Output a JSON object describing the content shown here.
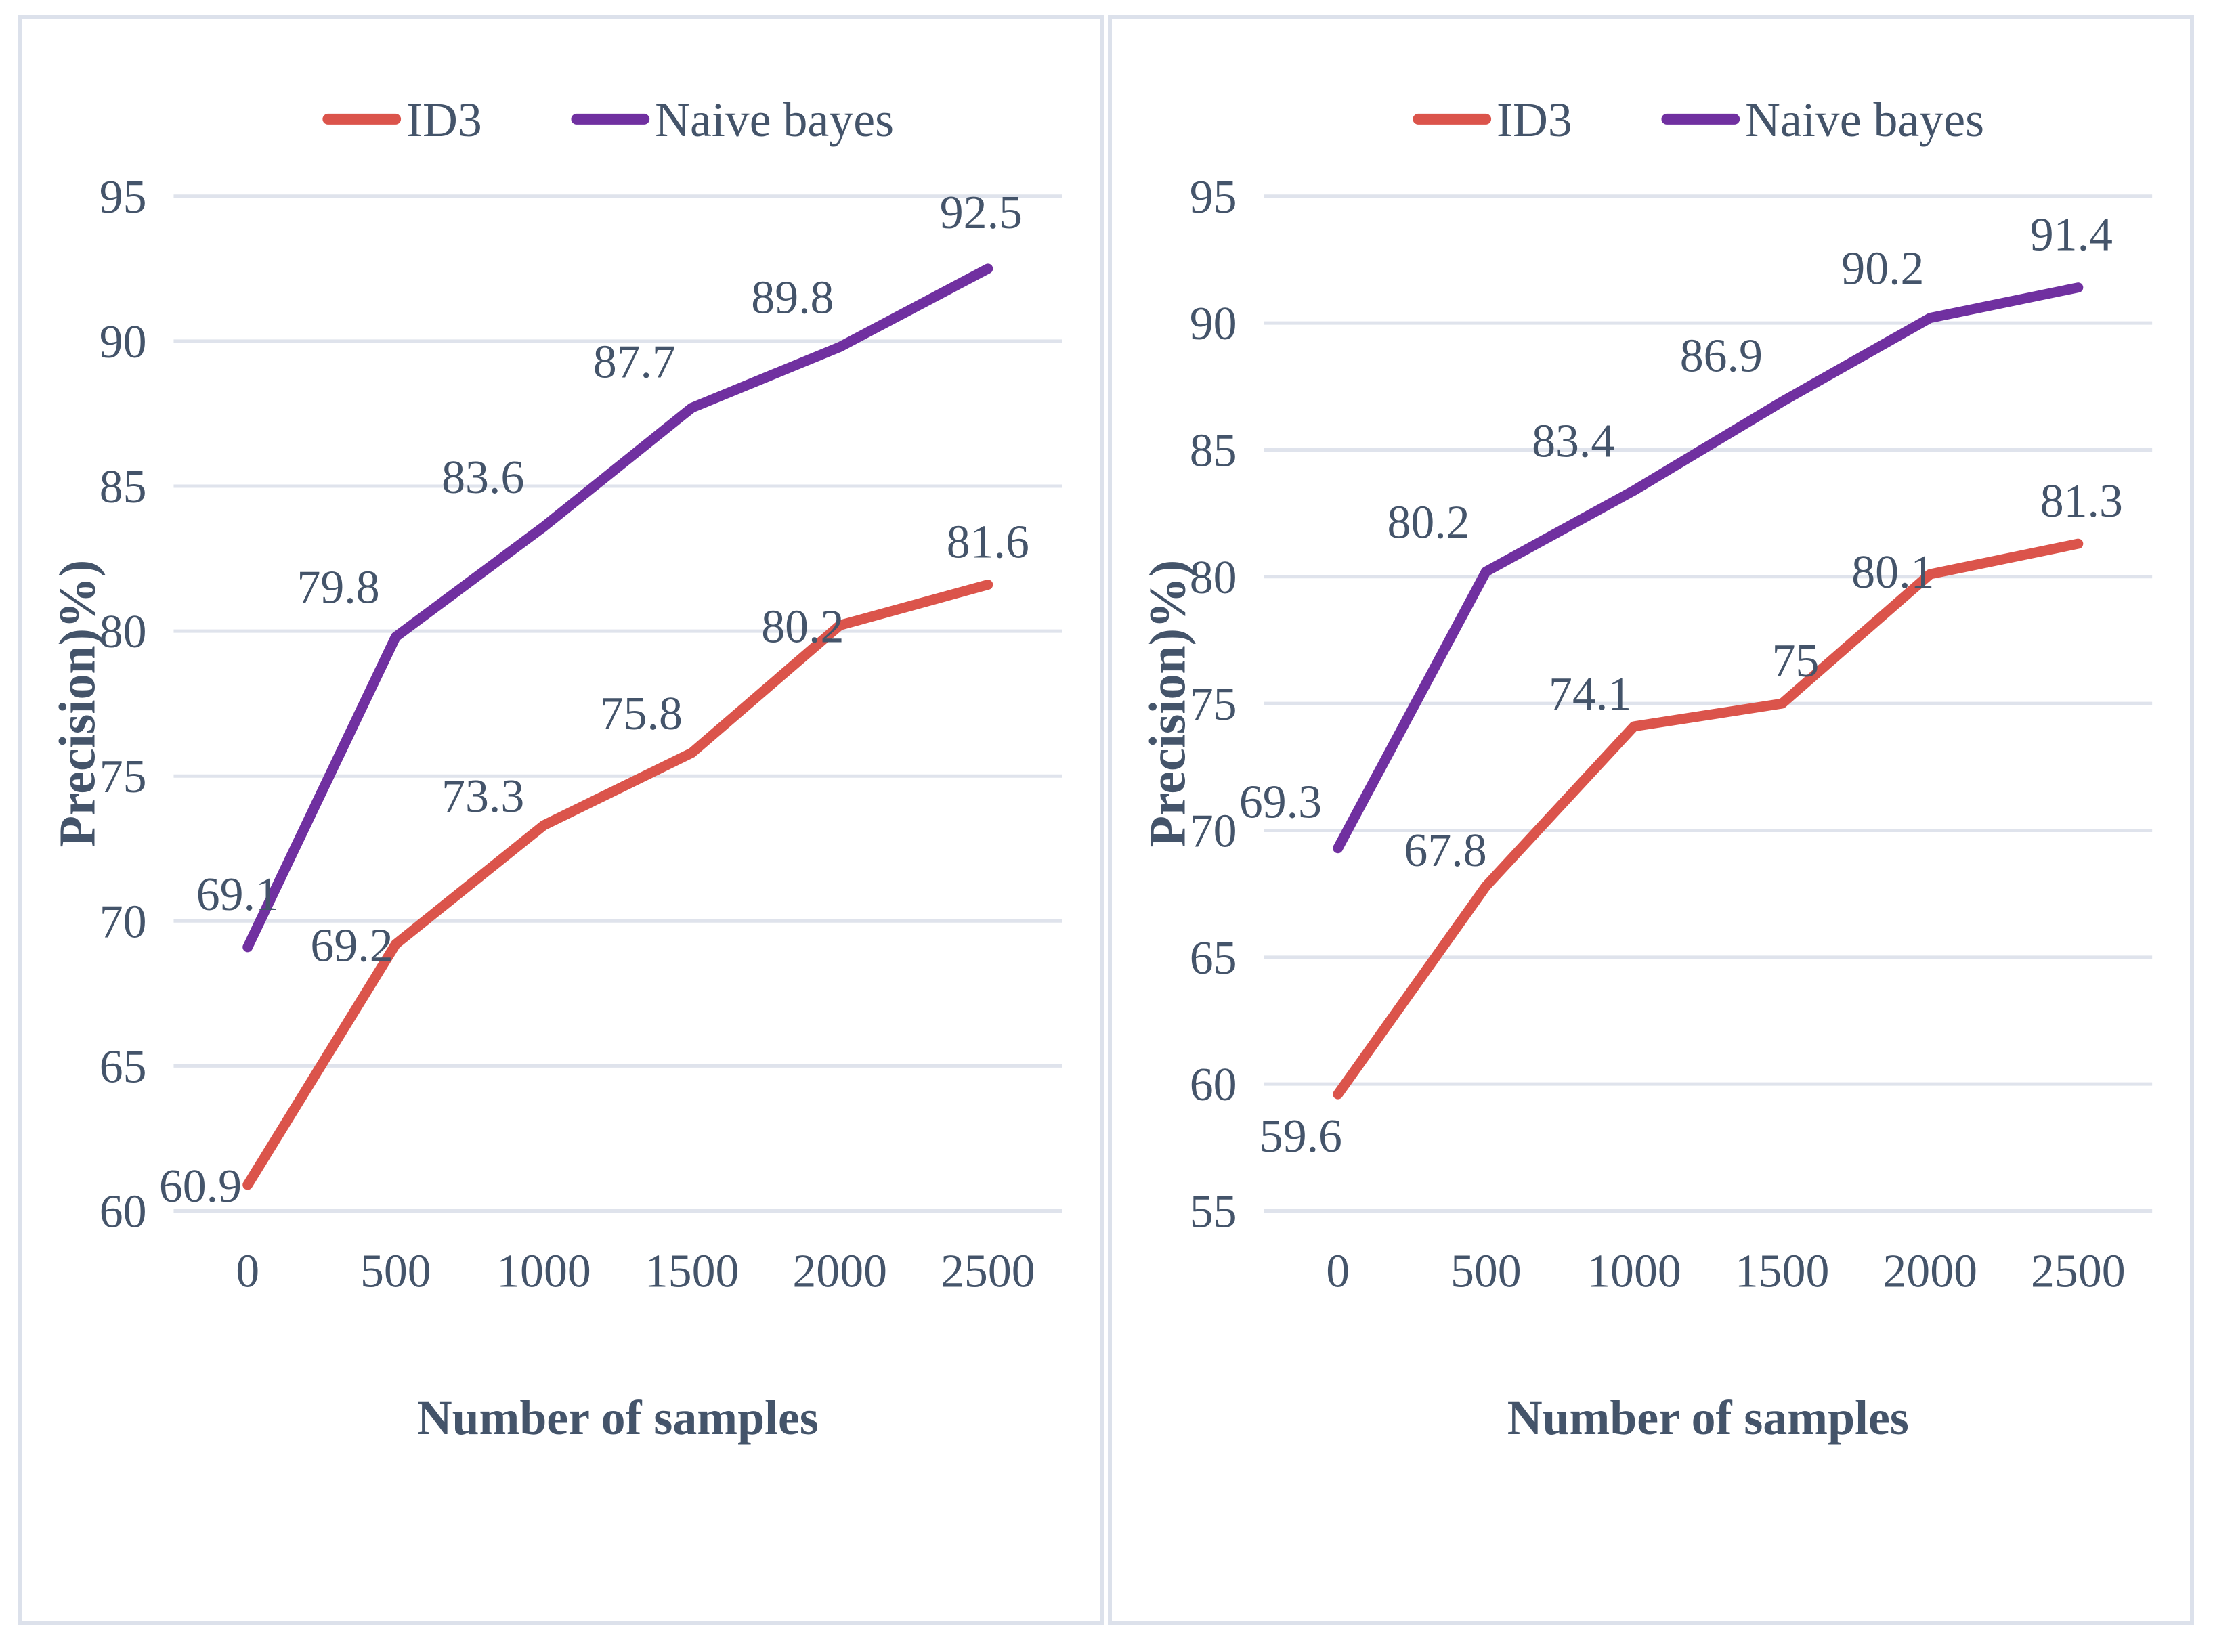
{
  "figure": {
    "background": "#ffffff"
  },
  "style": {
    "text_color": "#44546A",
    "grid_color": "#DFE3EC",
    "panel_border_color": "#DCE1EB",
    "id3_color": "#DB544B",
    "naive_bayes_color": "#7030A0"
  },
  "chart_data": [
    {
      "type": "line",
      "title": "",
      "xlabel": "Number of samples",
      "ylabel": "Precision)%)",
      "x_categories": [
        "0",
        "500",
        "1000",
        "1500",
        "2000",
        "2500"
      ],
      "yticks": [
        95,
        90,
        85,
        80,
        75,
        70,
        65,
        60
      ],
      "ylim": [
        60,
        95
      ],
      "grid": true,
      "legend_position": "top-center",
      "data_labels": true,
      "series": [
        {
          "name": "ID3",
          "color_key": "id3_color",
          "values": [
            60.9,
            69.2,
            73.3,
            75.8,
            80.2,
            81.6
          ],
          "labels": [
            "60.9",
            "69.2",
            "73.3",
            "75.8",
            "80.2",
            "81.6"
          ]
        },
        {
          "name": "Naive bayes",
          "color_key": "naive_bayes_color",
          "values": [
            69.1,
            79.8,
            83.6,
            87.7,
            89.8,
            92.5
          ],
          "labels": [
            "69.1",
            "79.8",
            "83.6",
            "87.7",
            "89.8",
            "92.5"
          ]
        }
      ]
    },
    {
      "type": "line",
      "title": "",
      "xlabel": "Number of samples",
      "ylabel": "Precision)%)",
      "x_categories": [
        "0",
        "500",
        "1000",
        "1500",
        "2000",
        "2500"
      ],
      "yticks": [
        95,
        90,
        85,
        80,
        75,
        70,
        65,
        60,
        55
      ],
      "ylim": [
        55,
        95
      ],
      "grid": true,
      "legend_position": "top-center",
      "data_labels": true,
      "series": [
        {
          "name": "ID3",
          "color_key": "id3_color",
          "values": [
            59.6,
            67.8,
            74.1,
            75,
            80.1,
            81.3
          ],
          "labels": [
            "59.6",
            "67.8",
            "74.1",
            "75",
            "80.1",
            "81.3"
          ]
        },
        {
          "name": "Naive bayes",
          "color_key": "naive_bayes_color",
          "values": [
            69.3,
            80.2,
            83.4,
            86.9,
            90.2,
            91.4
          ],
          "labels": [
            "69.3",
            "80.2",
            "83.4",
            "86.9",
            "90.2",
            "91.4"
          ]
        }
      ]
    }
  ]
}
